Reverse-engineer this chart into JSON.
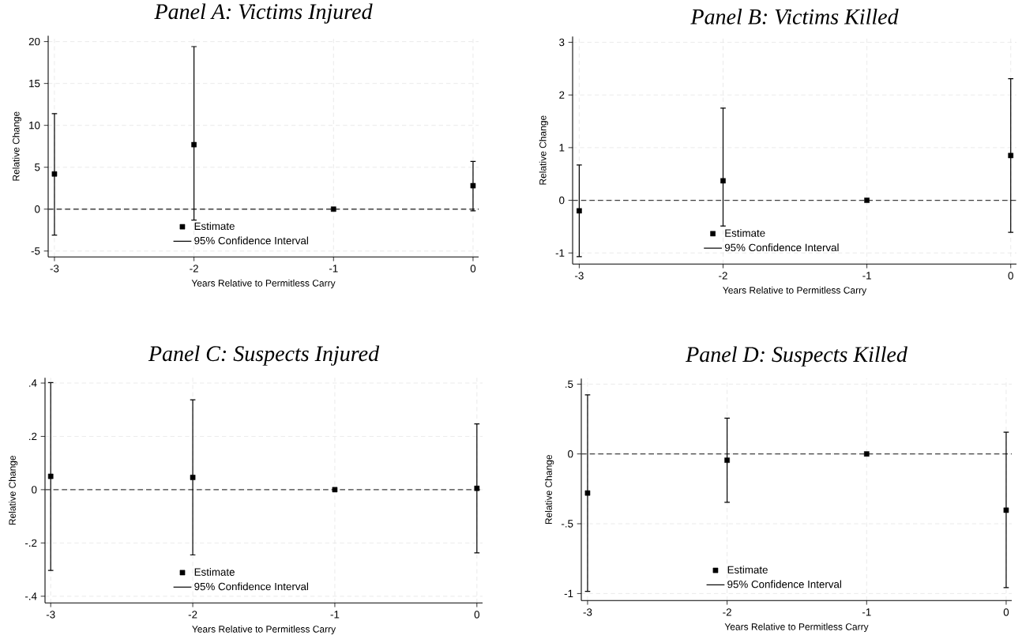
{
  "chart_data": [
    {
      "type": "scatter",
      "title": "Panel A: Victims Injured",
      "xlabel": "Years Relative to Permitless Carry",
      "ylabel": "Relative Change",
      "x": [
        -3,
        -2,
        -1,
        0
      ],
      "series": [
        {
          "name": "Estimate",
          "color": "#000000",
          "values": [
            4.2,
            7.7,
            0,
            2.8
          ],
          "errors": [
            [
              -3.1,
              11.4
            ],
            [
              -1.3,
              19.4
            ],
            null,
            [
              -0.2,
              5.7
            ]
          ]
        }
      ],
      "xlim": [
        -3.045,
        0.04
      ],
      "ylim": [
        -5.7,
        20.7
      ],
      "xticks": [
        -3,
        -2,
        -1,
        0
      ],
      "yticks": [
        -5,
        0,
        5,
        10,
        15,
        20
      ],
      "ref_lines": [
        {
          "axis": "y",
          "value": 0,
          "color": "#404040",
          "line_style": "dashed"
        }
      ],
      "annotations": [
        "95% Confidence Interval"
      ],
      "grid": true,
      "legend": "bottom",
      "marker": "square"
    },
    {
      "type": "scatter",
      "title": "Panel B: Victims Killed",
      "xlabel": "Years Relative to Permitless Carry",
      "ylabel": "Relative Change",
      "x": [
        -3,
        -2,
        -1,
        0
      ],
      "series": [
        {
          "name": "Estimate",
          "color": "#000000",
          "values": [
            -0.2,
            0.37,
            0,
            0.85
          ],
          "errors": [
            [
              -1.07,
              0.67
            ],
            [
              -0.49,
              1.75
            ],
            null,
            [
              -0.61,
              2.31
            ]
          ]
        }
      ],
      "xlim": [
        -3.046,
        0.04
      ],
      "ylim": [
        -1.21,
        3.11
      ],
      "xticks": [
        -3,
        -2,
        -1,
        0
      ],
      "yticks": [
        -1,
        0,
        1,
        2,
        3
      ],
      "ref_lines": [
        {
          "axis": "y",
          "value": 0,
          "color": "#404040",
          "line_style": "dashed"
        }
      ],
      "annotations": [
        "95% Confidence Interval"
      ],
      "grid": true,
      "legend": "bottom",
      "marker": "square"
    },
    {
      "type": "scatter",
      "title": "Panel C: Suspects Injured",
      "xlabel": "Years Relative to Permitless Carry",
      "ylabel": "Relative Change",
      "x": [
        -3,
        -2,
        -1,
        0
      ],
      "series": [
        {
          "name": "Estimate",
          "color": "#000000",
          "values": [
            0.05,
            0.046,
            0,
            0.005
          ],
          "errors": [
            [
              -0.303,
              0.402
            ],
            [
              -0.245,
              0.337
            ],
            null,
            [
              -0.237,
              0.247
            ]
          ]
        }
      ],
      "xlim": [
        -3.04,
        0.04
      ],
      "ylim": [
        -0.425,
        0.42
      ],
      "xticks": [
        -3,
        -2,
        -1,
        0
      ],
      "yticks": [
        {
          "value": -0.4,
          "label": "-.4"
        },
        {
          "value": -0.2,
          "label": "-.2"
        },
        0,
        {
          "value": 0.2,
          "label": ".2"
        },
        {
          "value": 0.4,
          "label": ".4"
        }
      ],
      "ref_lines": [
        {
          "axis": "y",
          "value": 0,
          "color": "#404040",
          "line_style": "dashed"
        }
      ],
      "annotations": [
        "95% Confidence Interval"
      ],
      "grid": true,
      "legend": "bottom",
      "marker": "square"
    },
    {
      "type": "scatter",
      "title": "Panel D: Suspects Killed",
      "xlabel": "Years Relative to Permitless Carry",
      "ylabel": "Relative Change",
      "x": [
        -3,
        -2,
        -1,
        0
      ],
      "series": [
        {
          "name": "Estimate",
          "color": "#000000",
          "values": [
            -0.28,
            -0.045,
            0,
            -0.403
          ],
          "errors": [
            [
              -0.984,
              0.423
            ],
            [
              -0.346,
              0.256
            ],
            null,
            [
              -0.957,
              0.156
            ]
          ]
        }
      ],
      "xlim": [
        -3.045,
        0.04
      ],
      "ylim": [
        -1.05,
        0.54
      ],
      "xticks": [
        -3,
        -2,
        -1,
        0
      ],
      "yticks": [
        {
          "value": -1,
          "label": "-1"
        },
        {
          "value": -0.5,
          "label": "-.5"
        },
        0,
        {
          "value": 0.5,
          "label": ".5"
        }
      ],
      "ref_lines": [
        {
          "axis": "y",
          "value": 0,
          "color": "#404040",
          "line_style": "dashed"
        }
      ],
      "annotations": [
        "95% Confidence Interval"
      ],
      "grid": true,
      "legend": "bottom",
      "marker": "square"
    }
  ]
}
